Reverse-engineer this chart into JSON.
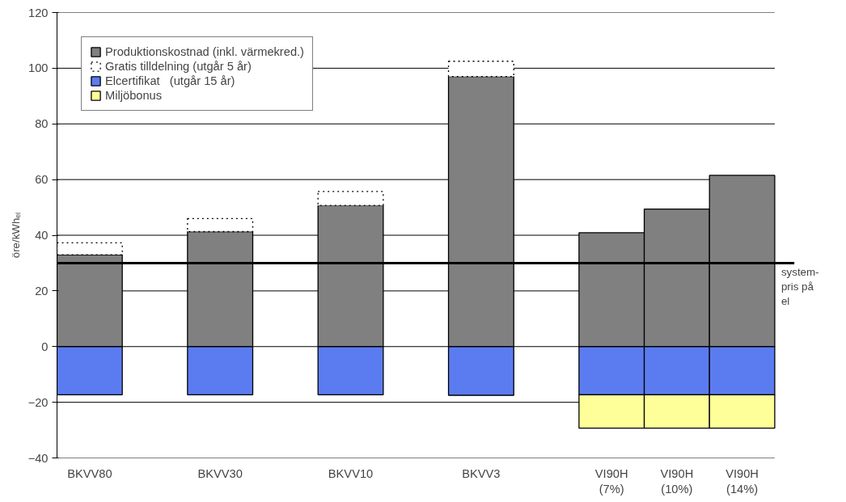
{
  "chart_data": {
    "type": "bar",
    "stacked": true,
    "ylabel": "öre/kWhₑₗ",
    "categories": [
      "BKVV80",
      null,
      "BKVV30",
      null,
      "BKVV10",
      null,
      "BKVV3",
      null,
      "VI90H\n(7%)",
      "VI90H\n(10%)",
      "VI90H\n(14%)"
    ],
    "series": [
      {
        "name": "Produktionskostnad (inkl. värmekred.)",
        "color": "#808080",
        "values": [
          33,
          null,
          41.3,
          null,
          50.7,
          null,
          97,
          null,
          40.9,
          49.4,
          61.5
        ]
      },
      {
        "name": "Gratis tilldelning (utgår 5 år)",
        "color": "#ffffff",
        "line_style": "dotted",
        "values": [
          4.3,
          null,
          4.7,
          null,
          5,
          null,
          5.5,
          null,
          null,
          null,
          null
        ]
      },
      {
        "name": "Elcertifikat   (utgår 15 år)",
        "color": "#5b7cf0",
        "values": [
          -17.3,
          null,
          -17.3,
          null,
          -17.3,
          null,
          -17.5,
          null,
          -17.3,
          -17.3,
          -17.3
        ]
      },
      {
        "name": "Miljöbonus",
        "color": "#ffff99",
        "values": [
          null,
          null,
          null,
          null,
          null,
          null,
          null,
          null,
          -12,
          -12,
          -12
        ]
      }
    ],
    "ylim": [
      -40,
      120
    ],
    "yticks": [
      -40,
      -20,
      0,
      20,
      40,
      60,
      80,
      100,
      120
    ],
    "grid": "y",
    "legend": "top left",
    "ref_lines": [
      {
        "axis": "y",
        "value": 30,
        "label": "system-pris på el",
        "color": "#000000"
      }
    ]
  }
}
